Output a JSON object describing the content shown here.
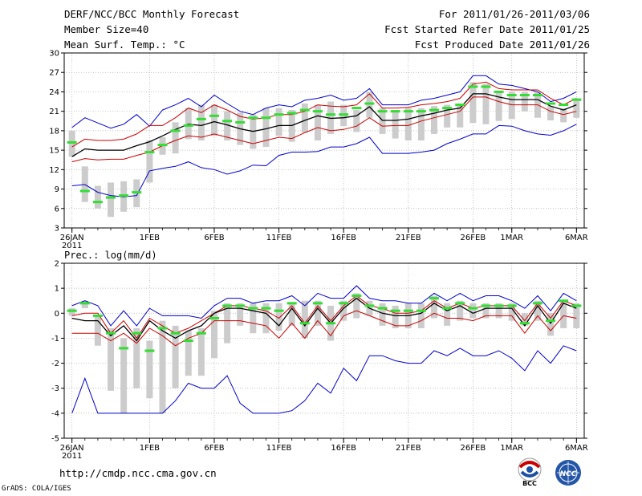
{
  "header": {
    "title": "DERF/NCC/BCC Monthly Forecast",
    "member_size": "Member Size=40",
    "variable": "Mean Surf. Temp.: °C",
    "for_range": "For 2011/01/26-2011/03/06",
    "started_refer": "Fcst Started Refer Date 2011/01/25",
    "produced": "Fcst Produced Date 2011/01/26"
  },
  "footer": {
    "url": "http://cmdp.ncc.cma.gov.cn",
    "grads": "GrADS: COLA/IGES",
    "logo_left": "BCC",
    "logo_right": "NCC"
  },
  "colors": {
    "envelope": "#0000cc",
    "spread": "#cc0000",
    "mean": "#000000",
    "median_bar": "#33dd33",
    "box": "#cccccc",
    "grid": "#aaaaaa"
  },
  "chart_data": [
    {
      "type": "line",
      "title": "Mean Surf. Temp.",
      "ylabel": "°C",
      "ylim": [
        3,
        30
      ],
      "yticks": [
        3,
        6,
        9,
        12,
        15,
        18,
        21,
        24,
        27,
        30
      ],
      "x": [
        0,
        1,
        2,
        3,
        4,
        5,
        6,
        7,
        8,
        9,
        10,
        11,
        12,
        13,
        14,
        15,
        16,
        17,
        18,
        19,
        20,
        21,
        22,
        23,
        24,
        25,
        26,
        27,
        28,
        29,
        30,
        31,
        32,
        33,
        34,
        35,
        36,
        37,
        38,
        39
      ],
      "xtick_positions": [
        0,
        6,
        11,
        16,
        21,
        26,
        31,
        34,
        39
      ],
      "xtick_labels": [
        "26JAN",
        "1FEB",
        "6FEB",
        "11FEB",
        "16FEB",
        "21FEB",
        "26FEB",
        "1MAR",
        "6MAR"
      ],
      "xtick_sublabel": "2011",
      "series": [
        {
          "name": "max",
          "color": "#0000cc",
          "values": [
            18.5,
            20.0,
            19.2,
            18.4,
            19.0,
            20.5,
            18.7,
            21.2,
            22.0,
            23.0,
            21.7,
            23.5,
            22.2,
            21.0,
            20.5,
            21.5,
            22.0,
            21.7,
            22.7,
            23.0,
            23.5,
            22.7,
            23.0,
            24.5,
            22.0,
            22.0,
            22.0,
            22.7,
            23.0,
            23.5,
            24.0,
            26.5,
            26.5,
            25.2,
            25.0,
            24.5,
            24.0,
            22.5,
            23.0,
            24.0
          ]
        },
        {
          "name": "upper",
          "color": "#cc0000",
          "values": [
            15.5,
            16.7,
            16.5,
            16.5,
            16.7,
            17.5,
            18.8,
            18.8,
            20.0,
            21.5,
            20.8,
            22.0,
            21.2,
            20.2,
            19.8,
            20.0,
            20.5,
            20.5,
            21.0,
            22.0,
            21.8,
            21.7,
            22.0,
            23.7,
            21.5,
            21.5,
            21.6,
            22.0,
            22.2,
            22.5,
            23.0,
            25.2,
            25.5,
            24.5,
            24.3,
            24.3,
            24.3,
            23.0,
            22.0,
            23.0
          ]
        },
        {
          "name": "mean",
          "color": "#000000",
          "values": [
            14.0,
            15.2,
            15.0,
            15.0,
            15.0,
            15.7,
            16.3,
            17.2,
            18.2,
            19.0,
            18.8,
            19.4,
            18.9,
            18.3,
            17.9,
            18.3,
            18.8,
            18.8,
            19.6,
            20.3,
            19.9,
            20.0,
            20.3,
            21.7,
            19.6,
            19.6,
            19.8,
            20.3,
            20.7,
            21.2,
            21.5,
            23.7,
            23.7,
            23.2,
            22.8,
            22.8,
            22.8,
            21.8,
            21.2,
            22.0
          ]
        },
        {
          "name": "lower",
          "color": "#cc0000",
          "values": [
            13.2,
            13.7,
            13.5,
            13.6,
            13.6,
            14.2,
            14.7,
            15.7,
            16.5,
            17.2,
            17.0,
            17.5,
            17.0,
            16.5,
            16.0,
            16.5,
            17.0,
            16.8,
            17.7,
            18.5,
            18.0,
            18.2,
            18.7,
            20.0,
            18.7,
            18.8,
            18.8,
            19.5,
            20.0,
            20.5,
            21.0,
            23.2,
            23.2,
            22.5,
            22.0,
            22.0,
            22.0,
            21.0,
            20.5,
            21.0
          ]
        },
        {
          "name": "min",
          "color": "#0000cc",
          "values": [
            9.5,
            9.7,
            8.5,
            8.0,
            7.8,
            8.0,
            11.8,
            12.2,
            12.5,
            13.2,
            12.3,
            12.0,
            11.3,
            11.8,
            12.7,
            12.6,
            14.2,
            14.7,
            14.7,
            14.8,
            15.5,
            15.5,
            16.0,
            17.0,
            14.5,
            14.5,
            14.5,
            14.7,
            15.0,
            16.0,
            16.7,
            17.5,
            17.5,
            18.8,
            18.7,
            18.0,
            17.5,
            17.3,
            18.0,
            19.0
          ]
        }
      ],
      "boxes_low": [
        14,
        7,
        6,
        4.7,
        5.5,
        6.2,
        10,
        14.3,
        14.5,
        16.7,
        16.5,
        17.2,
        16.5,
        15.8,
        15.2,
        15.5,
        17.2,
        16.3,
        17.7,
        16.5,
        17.5,
        18.7,
        17.8,
        20,
        17.5,
        16.8,
        16.5,
        16.5,
        17.5,
        18.5,
        18.5,
        19.2,
        19,
        19.5,
        19.8,
        21,
        20,
        19.6,
        19.3,
        20
      ],
      "boxes_high": [
        18,
        12.5,
        9.5,
        10,
        10.2,
        10.5,
        16.5,
        17,
        19.3,
        21.5,
        22,
        22,
        21,
        20.8,
        20.5,
        21.5,
        21.5,
        21.2,
        22.2,
        22,
        22.5,
        22,
        21.2,
        24,
        21.5,
        21.2,
        21.5,
        21.5,
        21.8,
        22,
        22.2,
        25.5,
        25.2,
        24.2,
        24,
        24,
        24,
        21.8,
        21.5,
        22.8
      ],
      "median_marks": [
        16.2,
        8.7,
        7.0,
        7.7,
        8.0,
        8.5,
        14.7,
        15.8,
        18.0,
        18.8,
        19.8,
        20.3,
        19.5,
        19.3,
        20.0,
        20.0,
        20.5,
        20.7,
        21.2,
        21.0,
        20.5,
        20.5,
        21.5,
        22.2,
        21.0,
        21.0,
        21.0,
        21.0,
        21.2,
        21.5,
        22.0,
        24.8,
        24.8,
        24.0,
        23.5,
        23.5,
        23.5,
        22.2,
        22.0,
        22.8
      ]
    },
    {
      "type": "line",
      "title": "Prec.: log(mm/d)",
      "ylabel": "log(mm/d)",
      "ylim": [
        -5,
        2
      ],
      "yticks": [
        -5,
        -4,
        -3,
        -2,
        -1,
        0,
        1,
        2
      ],
      "x": [
        0,
        1,
        2,
        3,
        4,
        5,
        6,
        7,
        8,
        9,
        10,
        11,
        12,
        13,
        14,
        15,
        16,
        17,
        18,
        19,
        20,
        21,
        22,
        23,
        24,
        25,
        26,
        27,
        28,
        29,
        30,
        31,
        32,
        33,
        34,
        35,
        36,
        37,
        38,
        39
      ],
      "xtick_positions": [
        0,
        6,
        11,
        16,
        21,
        26,
        31,
        34,
        39
      ],
      "xtick_labels": [
        "26JAN",
        "1FEB",
        "6FEB",
        "11FEB",
        "16FEB",
        "21FEB",
        "26FEB",
        "1MAR",
        "6MAR"
      ],
      "xtick_sublabel": "2011",
      "series": [
        {
          "name": "max",
          "color": "#0000cc",
          "values": [
            0.3,
            0.5,
            0.3,
            -0.5,
            0.1,
            -0.5,
            0.2,
            -0.1,
            -0.1,
            -0.1,
            -0.2,
            0.3,
            0.6,
            0.6,
            0.4,
            0.5,
            0.5,
            0.7,
            0.3,
            0.8,
            0.6,
            0.6,
            1.1,
            0.6,
            0.5,
            0.5,
            0.4,
            0.4,
            0.8,
            0.5,
            0.8,
            0.5,
            0.7,
            0.7,
            0.5,
            0.2,
            0.7,
            0.1,
            0.8,
            0.5
          ]
        },
        {
          "name": "upper",
          "color": "#cc0000",
          "values": [
            -0.1,
            0.0,
            0.0,
            -0.8,
            -0.3,
            -1.0,
            -0.2,
            -0.5,
            -0.8,
            -0.6,
            -0.3,
            0.0,
            0.3,
            0.3,
            0.2,
            0.1,
            -0.2,
            0.3,
            -0.4,
            0.3,
            -0.3,
            0.3,
            0.7,
            0.3,
            0.2,
            0.0,
            0.0,
            0.1,
            0.5,
            0.2,
            0.4,
            0.2,
            0.3,
            0.3,
            0.3,
            -0.3,
            0.4,
            -0.2,
            0.5,
            0.3
          ]
        },
        {
          "name": "mean",
          "color": "#000000",
          "values": [
            -0.2,
            -0.3,
            -0.3,
            -0.9,
            -0.5,
            -1.1,
            -0.3,
            -0.7,
            -1.0,
            -0.7,
            -0.5,
            0.0,
            0.2,
            0.2,
            0.1,
            0.0,
            -0.5,
            0.2,
            -0.5,
            0.2,
            -0.4,
            0.2,
            0.6,
            0.2,
            0.0,
            -0.1,
            -0.1,
            0.0,
            0.4,
            0.1,
            0.3,
            0.0,
            0.2,
            0.2,
            0.2,
            -0.5,
            0.3,
            -0.4,
            0.4,
            0.2
          ]
        },
        {
          "name": "lower",
          "color": "#cc0000",
          "values": [
            -0.8,
            -0.8,
            -0.8,
            -1.1,
            -0.8,
            -1.2,
            -0.6,
            -0.9,
            -1.3,
            -1.0,
            -0.8,
            -0.3,
            -0.3,
            -0.3,
            -0.4,
            -0.5,
            -1.0,
            -0.4,
            -1.0,
            -0.3,
            -0.9,
            -0.1,
            0.1,
            -0.1,
            -0.3,
            -0.5,
            -0.5,
            -0.3,
            0.0,
            -0.2,
            -0.2,
            -0.3,
            -0.1,
            -0.1,
            -0.1,
            -0.8,
            -0.1,
            -0.7,
            -0.1,
            -0.2
          ]
        },
        {
          "name": "min",
          "color": "#0000cc",
          "values": [
            -4.0,
            -2.6,
            -4.0,
            -4.0,
            -4.0,
            -4.0,
            -4.0,
            -4.0,
            -3.5,
            -2.8,
            -3.0,
            -3.0,
            -2.5,
            -3.6,
            -4.0,
            -4.0,
            -4.0,
            -3.9,
            -3.5,
            -2.8,
            -3.2,
            -2.2,
            -2.7,
            -1.7,
            -1.7,
            -1.9,
            -2.0,
            -2.0,
            -1.5,
            -1.7,
            -1.4,
            -1.7,
            -1.7,
            -1.5,
            -1.8,
            -2.3,
            -1.5,
            -2.0,
            -1.3,
            -1.5
          ]
        }
      ],
      "boxes_low": [
        -0.1,
        0.2,
        -1.3,
        -3.1,
        -4.0,
        -3.0,
        -3.4,
        -4.0,
        -3.0,
        -2.5,
        -2.5,
        -1.8,
        -1.2,
        -0.5,
        -0.8,
        -0.8,
        -0.7,
        -0.5,
        -1.0,
        -0.5,
        -1.1,
        -0.3,
        -0.2,
        -0.1,
        -0.5,
        -0.6,
        -0.6,
        -0.6,
        -0.2,
        -0.5,
        -0.3,
        -0.2,
        -0.2,
        -0.2,
        -0.3,
        -0.5,
        -0.3,
        -0.9,
        -0.6,
        -0.6
      ],
      "boxes_high": [
        0.2,
        0.5,
        -0.1,
        -0.6,
        -1.0,
        -0.6,
        -1.1,
        -0.3,
        -0.5,
        -0.7,
        -0.6,
        0.1,
        0.4,
        0.4,
        0.4,
        0.4,
        0.4,
        0.4,
        0.5,
        0.5,
        0.3,
        0.5,
        0.8,
        0.5,
        0.4,
        0.3,
        0.4,
        0.4,
        0.7,
        0.4,
        0.5,
        0.4,
        0.4,
        0.4,
        0.4,
        0.0,
        0.5,
        0.0,
        0.5,
        0.4
      ],
      "median_marks": [
        0.1,
        0.4,
        -0.1,
        -0.8,
        -1.4,
        -0.8,
        -1.5,
        -0.6,
        -0.8,
        -1.1,
        -0.8,
        -0.2,
        0.3,
        0.3,
        0.2,
        0.2,
        0.1,
        0.4,
        -0.4,
        0.4,
        -0.4,
        0.4,
        0.7,
        0.3,
        0.2,
        0.1,
        0.1,
        0.1,
        0.6,
        0.2,
        0.4,
        0.2,
        0.3,
        0.3,
        0.3,
        -0.4,
        0.4,
        -0.3,
        0.5,
        0.3
      ]
    }
  ]
}
